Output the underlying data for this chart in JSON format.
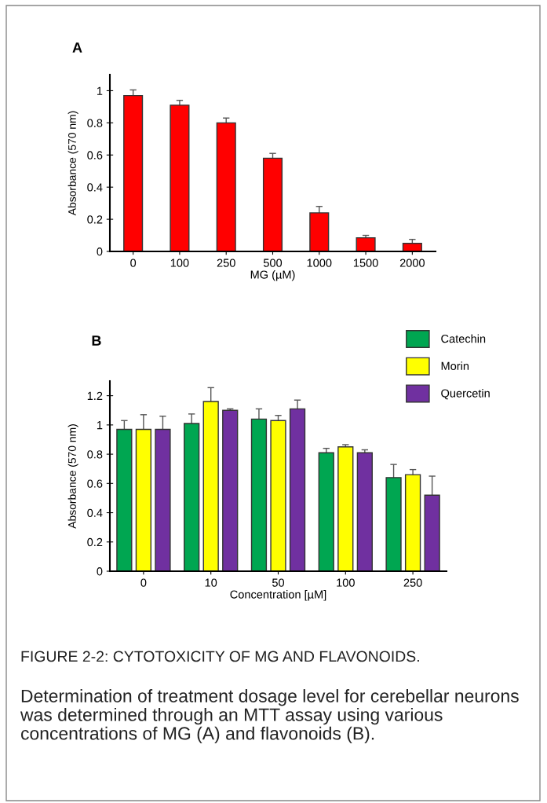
{
  "chart_data": [
    {
      "type": "bar",
      "title": "A",
      "xlabel": "MG (µM)",
      "ylabel": "Absorbance (570 nm)",
      "categories": [
        "0",
        "100",
        "250",
        "500",
        "1000",
        "1500",
        "2000"
      ],
      "values": [
        0.97,
        0.91,
        0.8,
        0.58,
        0.24,
        0.085,
        0.05
      ],
      "errors": [
        0.035,
        0.03,
        0.03,
        0.03,
        0.04,
        0.015,
        0.025
      ],
      "color": "#ff0000",
      "ylim": [
        0,
        1.1
      ],
      "yticks": [
        0,
        0.2,
        0.4,
        0.6,
        0.8,
        1
      ],
      "grid": false
    },
    {
      "type": "bar",
      "title": "B",
      "xlabel": "Concentration [µM]",
      "ylabel": "Absorbance (570 nm)",
      "categories": [
        "0",
        "10",
        "50",
        "100",
        "250"
      ],
      "series": [
        {
          "name": "Catechin",
          "color": "#00a651",
          "values": [
            0.97,
            1.01,
            1.04,
            0.81,
            0.64
          ],
          "errors": [
            0.06,
            0.065,
            0.07,
            0.03,
            0.09
          ]
        },
        {
          "name": "Morin",
          "color": "#ffff00",
          "values": [
            0.97,
            1.16,
            1.03,
            0.85,
            0.66
          ],
          "errors": [
            0.1,
            0.095,
            0.035,
            0.015,
            0.035
          ]
        },
        {
          "name": "Quercetin",
          "color": "#7030a0",
          "values": [
            0.97,
            1.1,
            1.11,
            0.81,
            0.52
          ],
          "errors": [
            0.09,
            0.01,
            0.06,
            0.02,
            0.13
          ]
        }
      ],
      "ylim": [
        0,
        1.3
      ],
      "yticks": [
        0,
        0.2,
        0.4,
        0.6,
        0.8,
        1,
        1.2
      ],
      "grid": false,
      "legend": "top right",
      "annotations": [
        "FIGURE 2-2: CYTOTOXICITY OF MG AND FLAVONOIDS.",
        "Determination of treatment dosage level for cerebellar neurons was determined through an MTT assay using various concentrations of MG (A) and flavonoids (B)."
      ]
    }
  ]
}
